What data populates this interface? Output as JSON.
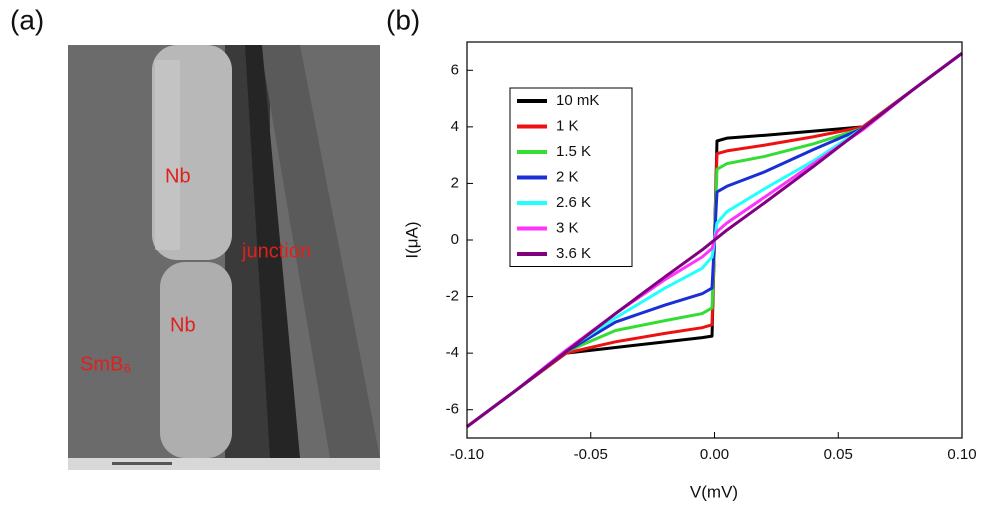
{
  "figure": {
    "panel_a_label": "(a)",
    "panel_b_label": "(b)",
    "image_annotations": [
      "Nb",
      "junction",
      "Nb",
      "SmB₆"
    ]
  },
  "chart_data": {
    "type": "line",
    "x_label": "V(mV)",
    "y_label": "I(μA)",
    "x": [
      -0.1,
      -0.08,
      -0.06,
      -0.04,
      -0.02,
      -0.005,
      -0.001,
      0,
      0.001,
      0.005,
      0.02,
      0.04,
      0.06,
      0.08,
      0.1
    ],
    "series": [
      {
        "name": "10 mK",
        "color": "#000000",
        "values": [
          -6.6,
          -5.3,
          -4.0,
          -3.8,
          -3.6,
          -3.45,
          -3.4,
          0,
          3.5,
          3.6,
          3.7,
          3.85,
          4.0,
          5.3,
          6.6
        ]
      },
      {
        "name": "1 K",
        "color": "#ee1111",
        "values": [
          -6.6,
          -5.3,
          -4.0,
          -3.6,
          -3.3,
          -3.1,
          -3.0,
          0,
          3.05,
          3.15,
          3.35,
          3.65,
          4.0,
          5.3,
          6.6
        ]
      },
      {
        "name": "1.5 K",
        "color": "#33dd33",
        "values": [
          -6.6,
          -5.3,
          -3.95,
          -3.2,
          -2.85,
          -2.6,
          -2.4,
          0,
          2.5,
          2.7,
          2.95,
          3.4,
          3.95,
          5.3,
          6.6
        ]
      },
      {
        "name": "2 K",
        "color": "#1a2fd6",
        "values": [
          -6.6,
          -5.3,
          -3.95,
          -2.9,
          -2.3,
          -1.9,
          -1.7,
          0,
          1.7,
          1.9,
          2.4,
          3.2,
          3.95,
          5.3,
          6.6
        ]
      },
      {
        "name": "2.6 K",
        "color": "#22ffff",
        "values": [
          -6.6,
          -5.3,
          -3.9,
          -2.75,
          -1.7,
          -1.0,
          -0.6,
          0,
          0.6,
          1.0,
          1.8,
          2.8,
          3.95,
          5.3,
          6.6
        ]
      },
      {
        "name": "3 K",
        "color": "#ff33ff",
        "values": [
          -6.6,
          -5.3,
          -3.9,
          -2.6,
          -1.4,
          -0.6,
          -0.3,
          0,
          0.3,
          0.6,
          1.5,
          2.7,
          3.9,
          5.3,
          6.6
        ]
      },
      {
        "name": "3.6 K",
        "color": "#800080",
        "values": [
          -6.6,
          -5.3,
          -3.95,
          -2.6,
          -1.3,
          -0.35,
          -0.07,
          0,
          0.07,
          0.35,
          1.3,
          2.6,
          3.95,
          5.3,
          6.6
        ]
      }
    ],
    "xlim": [
      -0.1,
      0.1
    ],
    "xticks": [
      {
        "value": -0.1,
        "label": "-0.10"
      },
      -0.05,
      {
        "value": 0,
        "label": "0.00"
      },
      0.05,
      {
        "value": 0.1,
        "label": "0.10"
      }
    ],
    "ylim": [
      -7,
      7
    ],
    "yticks": [
      -6,
      -4,
      -2,
      0,
      2,
      4,
      6
    ],
    "legend": "upper left"
  }
}
